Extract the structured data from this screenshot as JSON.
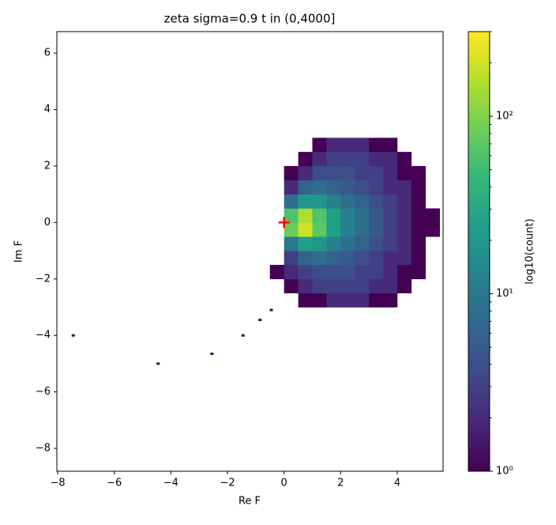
{
  "chart_data": {
    "type": "hist2d",
    "title": "zeta  sigma=0.9  t in (0,4000]",
    "xlabel": "Re F",
    "ylabel": "Im F",
    "colorbar_label": "log10(count)",
    "colormap": "viridis",
    "xlim": [
      -8.03,
      5.62
    ],
    "ylim": [
      -8.81,
      6.76
    ],
    "xticks": [
      {
        "value": -8,
        "label": "−8"
      },
      {
        "value": -6,
        "label": "−6"
      },
      {
        "value": -4,
        "label": "−4"
      },
      {
        "value": -2,
        "label": "−2"
      },
      0,
      2,
      4
    ],
    "yticks": [
      {
        "value": -8,
        "label": "−8"
      },
      {
        "value": -6,
        "label": "−6"
      },
      {
        "value": -4,
        "label": "−4"
      },
      {
        "value": -2,
        "label": "−2"
      },
      0,
      2,
      4,
      6
    ],
    "clim": [
      1,
      300
    ],
    "clog": true,
    "cticks": [
      {
        "value": 1,
        "label": "10⁰"
      },
      {
        "value": 10,
        "label": "10¹"
      },
      {
        "value": 100,
        "label": "10²"
      }
    ],
    "cminorticks": [
      2,
      3,
      4,
      5,
      6,
      7,
      8,
      9,
      20,
      30,
      40,
      50,
      60,
      70,
      80,
      90,
      200,
      300
    ],
    "xbins": [
      -0.5,
      0,
      0.5,
      1,
      1.5,
      2,
      2.5,
      3,
      3.5,
      4,
      4.5,
      5,
      5.5
    ],
    "ybins": [
      -3,
      -2.5,
      -2,
      -1.5,
      -1,
      -0.5,
      0,
      0.5,
      1,
      1.5,
      2,
      2.5,
      3
    ],
    "counts": [
      [
        null,
        null,
        1,
        1,
        2,
        2,
        2,
        1,
        1,
        null,
        null,
        null
      ],
      [
        null,
        1,
        2,
        3,
        3,
        3,
        3,
        2,
        2,
        1,
        null,
        null
      ],
      [
        1,
        2,
        3,
        4,
        4,
        4,
        3,
        3,
        2,
        1,
        1,
        null
      ],
      [
        null,
        3,
        6,
        8,
        6,
        5,
        4,
        3,
        2,
        2,
        1,
        null
      ],
      [
        null,
        10,
        25,
        20,
        12,
        8,
        6,
        4,
        3,
        2,
        1,
        null
      ],
      [
        null,
        80,
        200,
        70,
        25,
        12,
        8,
        5,
        3,
        2,
        1,
        1
      ],
      [
        null,
        60,
        150,
        60,
        25,
        12,
        8,
        5,
        3,
        2,
        1,
        1
      ],
      [
        null,
        8,
        20,
        20,
        12,
        8,
        6,
        4,
        3,
        2,
        1,
        null
      ],
      [
        null,
        2,
        6,
        8,
        6,
        5,
        4,
        3,
        2,
        2,
        1,
        null
      ],
      [
        null,
        1,
        2,
        4,
        4,
        4,
        3,
        3,
        2,
        1,
        1,
        null
      ],
      [
        null,
        null,
        1,
        2,
        3,
        3,
        3,
        2,
        2,
        1,
        null,
        null
      ],
      [
        null,
        null,
        null,
        1,
        2,
        2,
        2,
        1,
        1,
        null,
        null,
        null
      ]
    ],
    "outliers": {
      "x": [
        -7.45,
        -4.45,
        -2.55,
        -1.45,
        -0.85,
        -0.45
      ],
      "y": [
        -4.0,
        -5.0,
        -4.65,
        -4.0,
        -3.45,
        -3.1
      ],
      "values": [
        1,
        1,
        1,
        1,
        1,
        1
      ]
    },
    "marker": {
      "x": 0,
      "y": 0,
      "color": "#ff0000"
    }
  }
}
